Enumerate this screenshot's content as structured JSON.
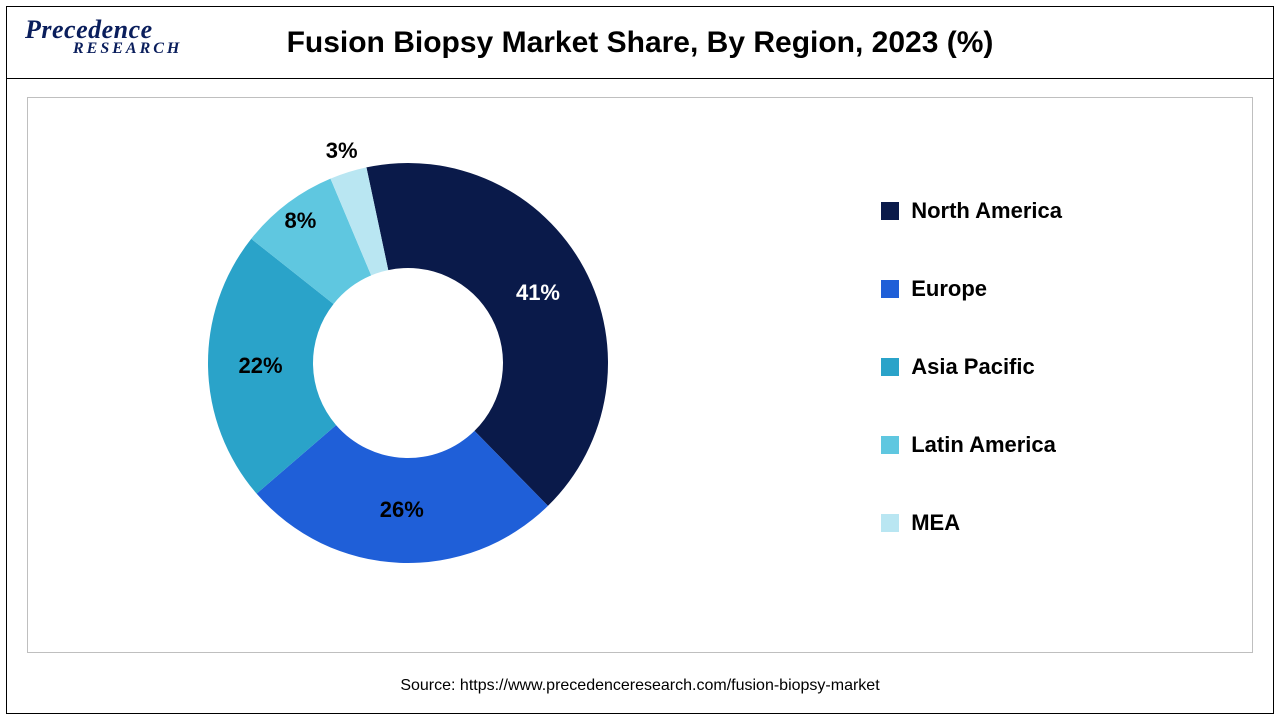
{
  "logo": {
    "line1": "Precedence",
    "line2": "RESEARCH"
  },
  "title": "Fusion Biopsy Market Share, By Region, 2023 (%)",
  "source": "Source: https://www.precedenceresearch.com/fusion-biopsy-market",
  "chart": {
    "type": "donut",
    "start_angle_deg": -12,
    "outer_radius": 200,
    "inner_radius": 95,
    "background_color": "#ffffff",
    "label_fontsize": 22,
    "label_fontweight": "bold",
    "legend_position": "right",
    "slices": [
      {
        "name": "North America",
        "value": 41,
        "label": "41%",
        "color": "#0a1a4a"
      },
      {
        "name": "Europe",
        "value": 26,
        "label": "26%",
        "color": "#1f5fd8"
      },
      {
        "name": "Asia Pacific",
        "value": 22,
        "label": "22%",
        "color": "#2aa3c9"
      },
      {
        "name": "Latin America",
        "value": 8,
        "label": "8%",
        "color": "#5fc7e0"
      },
      {
        "name": "MEA",
        "value": 3,
        "label": "3%",
        "color": "#b9e6f2"
      }
    ]
  }
}
